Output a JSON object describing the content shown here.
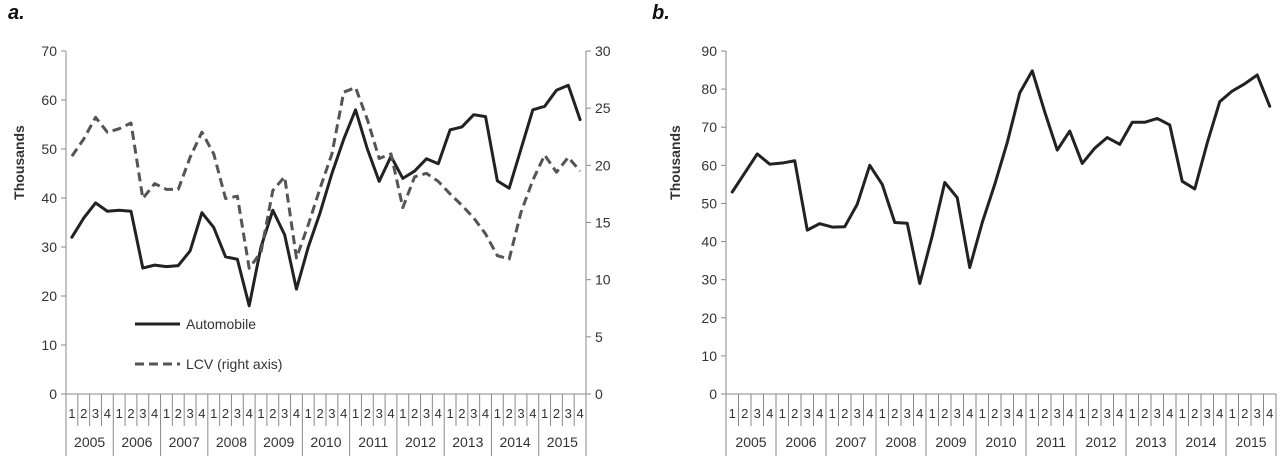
{
  "panels": {
    "a": "a.",
    "b": "b."
  },
  "chart_data": [
    {
      "type": "line",
      "panel": "a.",
      "ylabel": "Thousands",
      "y2label": "",
      "ylim": [
        0,
        70
      ],
      "y2lim": [
        0,
        30
      ],
      "yticks": [
        0,
        10,
        20,
        30,
        40,
        50,
        60,
        70
      ],
      "y2ticks": [
        0,
        5,
        10,
        15,
        20,
        25,
        30
      ],
      "quarters": [
        "1",
        "2",
        "3",
        "4"
      ],
      "years": [
        "2005",
        "2006",
        "2007",
        "2008",
        "2009",
        "2010",
        "2011",
        "2012",
        "2013",
        "2014",
        "2015"
      ],
      "legend": "bottom-left",
      "grid": false,
      "series": [
        {
          "name": "Automobile",
          "axis": "left",
          "style": "solid",
          "color": "#222222",
          "values": [
            32.0,
            35.9,
            39.0,
            37.3,
            37.5,
            37.3,
            25.7,
            26.3,
            26.0,
            26.2,
            29.2,
            37.0,
            34.0,
            28.0,
            27.5,
            18.0,
            30.0,
            37.5,
            32.5,
            21.4,
            30.0,
            37.0,
            45.0,
            52.0,
            58.0,
            50.0,
            43.4,
            48.5,
            44.0,
            45.5,
            48.0,
            47.0,
            53.9,
            54.5,
            57.0,
            56.6,
            43.5,
            42.0,
            50.0,
            58.0,
            58.7,
            62.0,
            63.0,
            56.0
          ]
        },
        {
          "name": "LCV (right axis)",
          "axis": "right",
          "style": "dashed",
          "color": "#555555",
          "values": [
            20.8,
            22.3,
            24.2,
            22.9,
            23.2,
            23.7,
            17.1,
            18.4,
            17.9,
            17.9,
            20.7,
            22.9,
            21.0,
            17.1,
            17.3,
            11.0,
            12.4,
            17.8,
            19.0,
            11.9,
            14.8,
            18.0,
            21.0,
            26.4,
            26.8,
            24.0,
            20.6,
            21.0,
            16.3,
            19.0,
            19.3,
            18.6,
            17.5,
            16.5,
            15.4,
            14.0,
            12.1,
            11.8,
            15.9,
            18.7,
            20.9,
            19.4,
            20.7,
            19.5
          ]
        }
      ]
    },
    {
      "type": "line",
      "panel": "b.",
      "ylabel": "Thousands",
      "ylim": [
        0,
        90
      ],
      "yticks": [
        0,
        10,
        20,
        30,
        40,
        50,
        60,
        70,
        80,
        90
      ],
      "quarters": [
        "1",
        "2",
        "3",
        "4"
      ],
      "years": [
        "2005",
        "2006",
        "2007",
        "2008",
        "2009",
        "2010",
        "2011",
        "2012",
        "2013",
        "2014",
        "2015"
      ],
      "grid": false,
      "series": [
        {
          "name": "",
          "style": "solid",
          "color": "#222222",
          "values": [
            53.0,
            58.0,
            63.0,
            60.3,
            60.6,
            61.2,
            43.0,
            44.7,
            43.8,
            43.9,
            49.8,
            60.0,
            55.0,
            45.0,
            44.8,
            29.0,
            41.5,
            55.5,
            51.5,
            33.2,
            45.0,
            55.0,
            66.0,
            79.0,
            84.8,
            74.0,
            64.0,
            69.0,
            60.5,
            64.5,
            67.3,
            65.5,
            71.3,
            71.3,
            72.3,
            70.6,
            55.8,
            53.8,
            65.9,
            76.7,
            79.5,
            81.4,
            83.7,
            75.5
          ]
        }
      ]
    }
  ]
}
